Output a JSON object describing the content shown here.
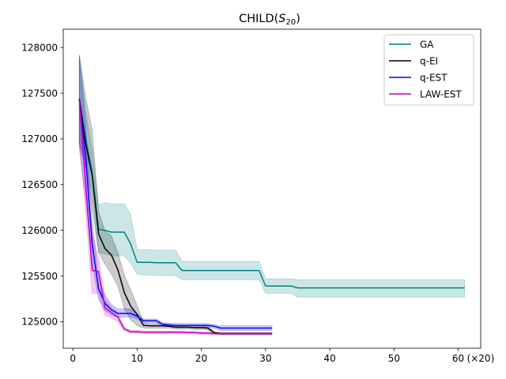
{
  "chart_data": {
    "type": "line",
    "title_prefix": "CHILD(",
    "title_symbol": "S",
    "title_subscript": "20",
    "title_suffix": ")",
    "x_unit_label": "(×20)",
    "xlim": [
      -1.5,
      63.5
    ],
    "ylim": [
      124710,
      128200
    ],
    "x_ticks": [
      0,
      10,
      20,
      30,
      40,
      50,
      60
    ],
    "y_ticks": [
      125000,
      125500,
      126000,
      126500,
      127000,
      127500,
      128000
    ],
    "grid": false,
    "legend_position": "top-right",
    "series": [
      {
        "name": "GA",
        "color": "#008080",
        "x": [
          1,
          2,
          3,
          4,
          5,
          6,
          7,
          8,
          9,
          10,
          11,
          12,
          13,
          14,
          15,
          16,
          17,
          18,
          19,
          20,
          21,
          22,
          23,
          24,
          25,
          26,
          27,
          28,
          29,
          30,
          31,
          32,
          33,
          34,
          35,
          36,
          40,
          45,
          50,
          55,
          61
        ],
        "y": [
          127440,
          127000,
          126630,
          126010,
          126000,
          125980,
          125980,
          125980,
          125850,
          125650,
          125650,
          125650,
          125645,
          125645,
          125645,
          125645,
          125560,
          125560,
          125560,
          125560,
          125560,
          125560,
          125560,
          125560,
          125560,
          125560,
          125560,
          125560,
          125560,
          125390,
          125390,
          125390,
          125390,
          125390,
          125370,
          125370,
          125370,
          125370,
          125370,
          125370,
          125370
        ],
        "lower": [
          126950,
          126700,
          126400,
          125760,
          125740,
          125720,
          125720,
          125720,
          125640,
          125520,
          125510,
          125510,
          125505,
          125505,
          125505,
          125505,
          125460,
          125460,
          125460,
          125460,
          125460,
          125460,
          125460,
          125460,
          125460,
          125460,
          125460,
          125460,
          125460,
          125310,
          125310,
          125310,
          125310,
          125310,
          125270,
          125270,
          125270,
          125270,
          125270,
          125270,
          125270
        ],
        "upper": [
          127920,
          127300,
          126870,
          126280,
          126300,
          126290,
          126290,
          126290,
          126170,
          125790,
          125790,
          125790,
          125785,
          125785,
          125785,
          125785,
          125660,
          125660,
          125660,
          125660,
          125660,
          125660,
          125660,
          125660,
          125660,
          125660,
          125660,
          125660,
          125660,
          125470,
          125470,
          125470,
          125470,
          125470,
          125460,
          125460,
          125460,
          125460,
          125460,
          125460,
          125460
        ]
      },
      {
        "name": "q-EI",
        "color": "#000000",
        "x": [
          1,
          2,
          3,
          4,
          5,
          6,
          7,
          8,
          9,
          10,
          11,
          12,
          13,
          14,
          15,
          16,
          17,
          18,
          19,
          20,
          21,
          22,
          23,
          24,
          25,
          26,
          27,
          28,
          29,
          30,
          31
        ],
        "y": [
          127440,
          126950,
          126600,
          125960,
          125800,
          125730,
          125570,
          125320,
          125170,
          125080,
          124960,
          124955,
          124955,
          124955,
          124950,
          124940,
          124940,
          124940,
          124935,
          124935,
          124930,
          124880,
          124870,
          124870,
          124870,
          124870,
          124870,
          124870,
          124870,
          124870,
          124870
        ],
        "lower": [
          126950,
          126700,
          126250,
          125760,
          125630,
          125520,
          125390,
          125140,
          125020,
          124960,
          124930,
          124930,
          124930,
          124930,
          124930,
          124920,
          124920,
          124920,
          124915,
          124915,
          124910,
          124870,
          124860,
          124860,
          124860,
          124860,
          124860,
          124860,
          124860,
          124860,
          124860
        ],
        "upper": [
          127920,
          127450,
          127100,
          126210,
          125990,
          125940,
          125760,
          125510,
          125350,
          125180,
          124990,
          124980,
          124980,
          124980,
          124970,
          124960,
          124960,
          124960,
          124955,
          124955,
          124950,
          124890,
          124880,
          124880,
          124880,
          124880,
          124880,
          124880,
          124880,
          124880,
          124880
        ]
      },
      {
        "name": "q-EST",
        "color": "#0000ff",
        "x": [
          1,
          2,
          3,
          4,
          5,
          6,
          7,
          8,
          9,
          10,
          11,
          12,
          13,
          14,
          15,
          16,
          17,
          18,
          19,
          20,
          21,
          22,
          23,
          24,
          25,
          26,
          27,
          28,
          29,
          30,
          31
        ],
        "y": [
          127430,
          126800,
          125850,
          125360,
          125200,
          125130,
          125090,
          125090,
          125090,
          125060,
          125010,
          125010,
          125010,
          124970,
          124965,
          124960,
          124960,
          124960,
          124960,
          124960,
          124960,
          124950,
          124930,
          124930,
          124930,
          124930,
          124930,
          124930,
          124930,
          124930,
          124930
        ],
        "lower": [
          126900,
          126350,
          125630,
          125250,
          125120,
          125070,
          125050,
          125050,
          125050,
          125030,
          124990,
          124990,
          124990,
          124950,
          124945,
          124940,
          124940,
          124940,
          124940,
          124940,
          124940,
          124930,
          124905,
          124905,
          124905,
          124905,
          124905,
          124905,
          124905,
          124905,
          124905
        ],
        "upper": [
          127900,
          127150,
          126100,
          125470,
          125290,
          125190,
          125140,
          125140,
          125140,
          125090,
          125030,
          125030,
          125030,
          124990,
          124985,
          124980,
          124980,
          124980,
          124980,
          124980,
          124980,
          124970,
          124955,
          124955,
          124955,
          124955,
          124955,
          124955,
          124955,
          124955,
          124955
        ]
      },
      {
        "name": "LAW-EST",
        "color": "#bf00bf",
        "x": [
          1,
          2,
          3,
          4,
          5,
          6,
          7,
          8,
          9,
          10,
          11,
          12,
          13,
          14,
          15,
          16,
          17,
          18,
          19,
          20,
          21,
          22,
          23,
          24,
          25,
          26,
          27,
          28,
          29,
          30,
          31
        ],
        "y": [
          127430,
          126500,
          125560,
          125550,
          125150,
          125100,
          125050,
          124920,
          124890,
          124890,
          124885,
          124885,
          124885,
          124885,
          124885,
          124885,
          124885,
          124880,
          124880,
          124875,
          124875,
          124870,
          124870,
          124870,
          124870,
          124870,
          124870,
          124870,
          124870,
          124870,
          124870
        ],
        "lower": [
          126960,
          126200,
          125310,
          125310,
          125070,
          125040,
          125000,
          124900,
          124875,
          124875,
          124870,
          124870,
          124870,
          124870,
          124870,
          124870,
          124870,
          124865,
          124865,
          124860,
          124860,
          124857,
          124857,
          124857,
          124857,
          124857,
          124857,
          124857,
          124857,
          124857,
          124857
        ],
        "upper": [
          127440,
          126850,
          125950,
          125700,
          125250,
          125160,
          125100,
          124940,
          124905,
          124905,
          124900,
          124900,
          124900,
          124900,
          124900,
          124900,
          124900,
          124895,
          124895,
          124890,
          124890,
          124883,
          124883,
          124883,
          124883,
          124883,
          124883,
          124883,
          124883,
          124883,
          124883
        ]
      }
    ]
  }
}
